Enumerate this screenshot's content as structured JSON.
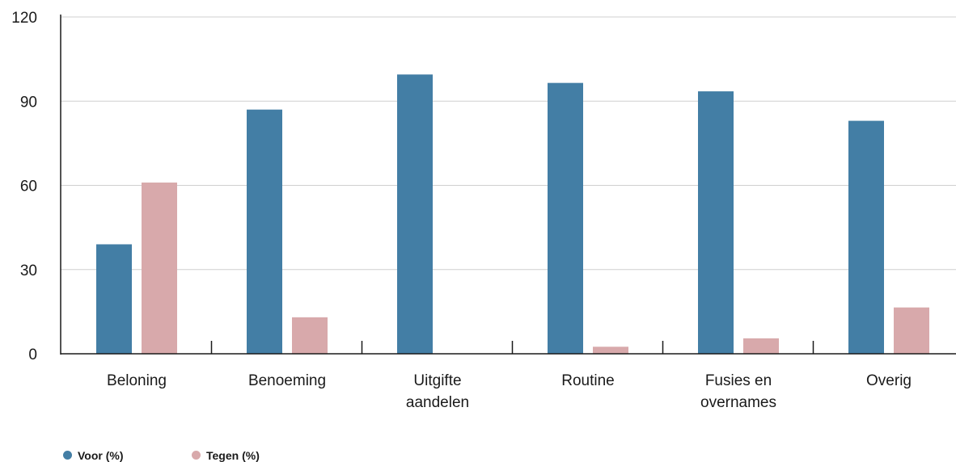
{
  "chart_data": {
    "type": "bar",
    "categories": [
      [
        "Beloning"
      ],
      [
        "Benoeming"
      ],
      [
        "Uitgifte",
        "aandelen"
      ],
      [
        "Routine"
      ],
      [
        "Fusies en",
        "overnames"
      ],
      [
        "Overig"
      ]
    ],
    "series": [
      {
        "name": "Voor (%)",
        "color": "#437ea5",
        "values": [
          39,
          87,
          99.5,
          96.5,
          93.5,
          83
        ]
      },
      {
        "name": "Tegen (%)",
        "color": "#d8a9ab",
        "values": [
          61,
          13,
          0,
          2.5,
          5.5,
          16.5
        ]
      }
    ],
    "ylim": [
      0,
      120
    ],
    "yticks": [
      0,
      30,
      60,
      90,
      120
    ],
    "grid": true,
    "legend_position": "bottom-left"
  }
}
